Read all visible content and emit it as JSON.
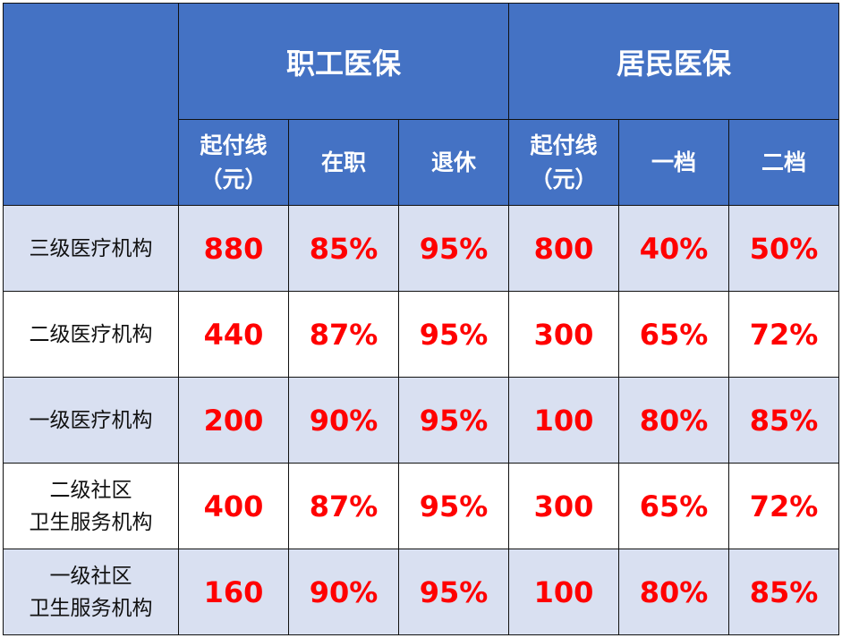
{
  "colors": {
    "header_bg": "#4472C4",
    "header_text": "#FFFFFF",
    "odd_row_bg": "#D9E0F1",
    "value_text": "#FF0000"
  },
  "groups": [
    "职工医保",
    "居民医保"
  ],
  "subheaders": [
    [
      "起付线",
      "（元）"
    ],
    [
      "在职"
    ],
    [
      "退休"
    ],
    [
      "起付线",
      "（元）"
    ],
    [
      "一档"
    ],
    [
      "二档"
    ]
  ],
  "rows": [
    {
      "label": [
        "三级医疗机构"
      ],
      "values": [
        "880",
        "85%",
        "95%",
        "800",
        "40%",
        "50%"
      ]
    },
    {
      "label": [
        "二级医疗机构"
      ],
      "values": [
        "440",
        "87%",
        "95%",
        "300",
        "65%",
        "72%"
      ]
    },
    {
      "label": [
        "一级医疗机构"
      ],
      "values": [
        "200",
        "90%",
        "95%",
        "100",
        "80%",
        "85%"
      ]
    },
    {
      "label": [
        "二级社区",
        "卫生服务机构"
      ],
      "values": [
        "400",
        "87%",
        "95%",
        "300",
        "65%",
        "72%"
      ]
    },
    {
      "label": [
        "一级社区",
        "卫生服务机构"
      ],
      "values": [
        "160",
        "90%",
        "95%",
        "100",
        "80%",
        "85%"
      ]
    }
  ]
}
